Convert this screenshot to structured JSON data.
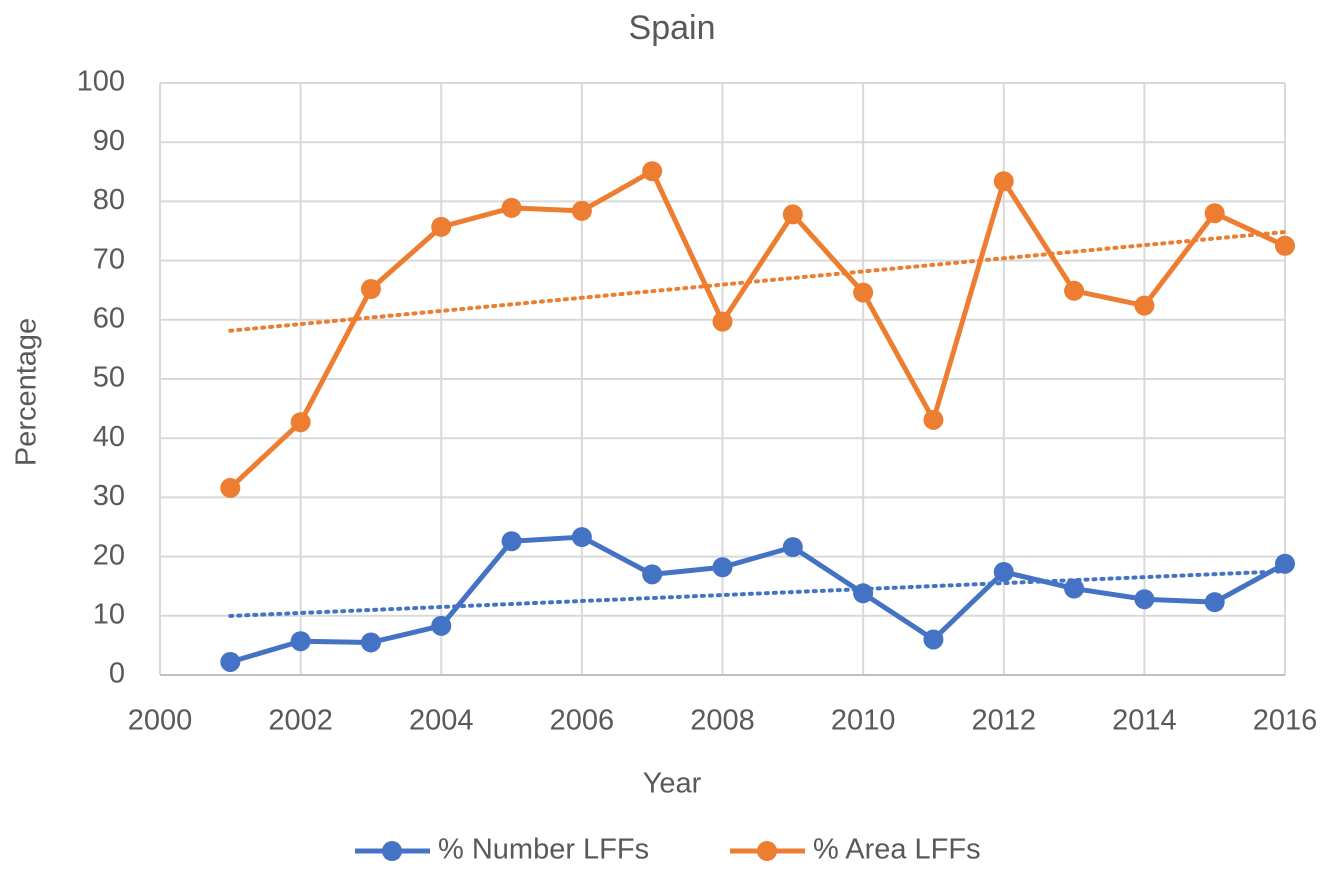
{
  "chart_data": {
    "type": "line",
    "title": "Spain",
    "x_label": "Year",
    "y_label": "Percentage",
    "x": [
      2001,
      2002,
      2003,
      2004,
      2005,
      2006,
      2007,
      2008,
      2009,
      2010,
      2011,
      2012,
      2013,
      2014,
      2015,
      2016
    ],
    "series": [
      {
        "name": "% Number LFFs",
        "color": "#4472c4",
        "values": [
          2.2,
          5.7,
          5.5,
          8.3,
          22.6,
          23.3,
          17,
          18.2,
          21.6,
          13.8,
          6,
          17.4,
          14.6,
          12.8,
          12.3,
          18.8
        ]
      },
      {
        "name": "% Area LFFs",
        "color": "#ed7d31",
        "values": [
          31.6,
          42.7,
          65.2,
          75.7,
          78.9,
          78.4,
          85.1,
          59.7,
          77.8,
          64.6,
          43.1,
          83.4,
          64.9,
          62.4,
          78,
          72.5
        ]
      }
    ],
    "trendline": "linear",
    "xlim": [
      2000,
      2016
    ],
    "xticks": [
      2000,
      2002,
      2004,
      2006,
      2008,
      2010,
      2012,
      2014,
      2016
    ],
    "ylim": [
      0,
      100
    ],
    "yticks": [
      0,
      10,
      20,
      30,
      40,
      50,
      60,
      70,
      80,
      90,
      100
    ],
    "grid": true,
    "legend": "bottom"
  }
}
